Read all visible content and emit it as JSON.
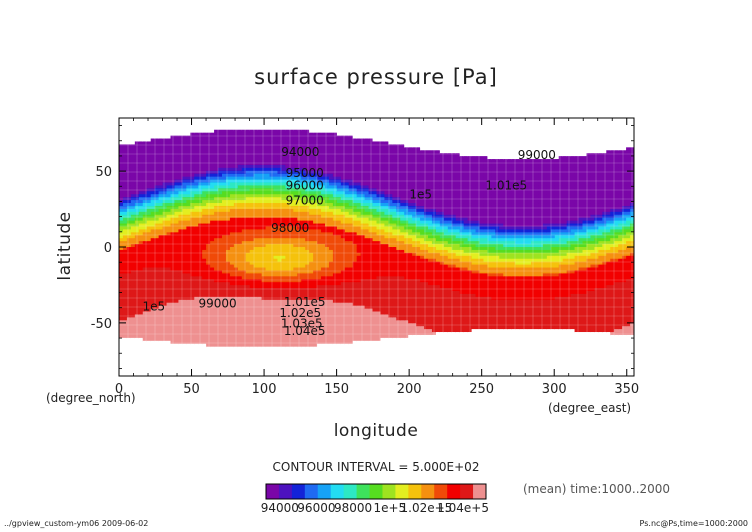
{
  "chart_data": {
    "type": "heatmap",
    "title": "surface pressure [Pa]",
    "xlabel": "longitude",
    "ylabel": "latitude",
    "x_unit": "(degree_east)",
    "y_unit": "(degree_north)",
    "xlim": [
      0,
      355
    ],
    "ylim": [
      -85,
      85
    ],
    "xticks": [
      0,
      50,
      100,
      150,
      200,
      250,
      300,
      350
    ],
    "yticks": [
      -50,
      0,
      50
    ],
    "contour_interval_text": "CONTOUR INTERVAL = 5.000E+02",
    "contour_levels": [
      94000,
      94500,
      95000,
      95500,
      96000,
      96500,
      97000,
      97500,
      98000,
      98500,
      99000,
      99500,
      100000,
      100500,
      101000,
      101500,
      102000,
      102500,
      103000,
      103500,
      104000,
      104500
    ],
    "colorbar": {
      "colors": [
        "#7a06a8",
        "#4d12bf",
        "#1323d8",
        "#1f6af2",
        "#16a2f6",
        "#23dcf2",
        "#2de8c4",
        "#3ee25c",
        "#56dd20",
        "#9ee320",
        "#e3ee20",
        "#f5c20c",
        "#f59010",
        "#f04a08",
        "#f20000",
        "#de1818",
        "#ee9090"
      ],
      "tick_labels": [
        "94000",
        "96000",
        "98000",
        "1e+5",
        "1.02e+5",
        "1.04e+5"
      ],
      "tick_values": [
        94000,
        96000,
        98000,
        100000,
        102000,
        104000
      ],
      "range": [
        93250,
        105250
      ]
    },
    "field_description": "zonal-band pressure field, low in the north (about 94000 Pa) and high in the south (about 104000 Pa)",
    "contour_labels": [
      {
        "text": "94000",
        "lon": 125,
        "lat": 60
      },
      {
        "text": "95000",
        "lon": 128,
        "lat": 46
      },
      {
        "text": "96000",
        "lon": 128,
        "lat": 38
      },
      {
        "text": "97000",
        "lon": 128,
        "lat": 28
      },
      {
        "text": "98000",
        "lon": 118,
        "lat": 10
      },
      {
        "text": "99000",
        "lon": 288,
        "lat": 58
      },
      {
        "text": "1.01e5",
        "lon": 267,
        "lat": 38
      },
      {
        "text": "1e5",
        "lon": 208,
        "lat": 32
      },
      {
        "text": "99000",
        "lon": 68,
        "lat": -40
      },
      {
        "text": "1e5",
        "lon": 24,
        "lat": -42
      },
      {
        "text": "1.01e5",
        "lon": 128,
        "lat": -39
      },
      {
        "text": "1.02e5",
        "lon": 125,
        "lat": -46
      },
      {
        "text": "1.03e5",
        "lon": 126,
        "lat": -53
      },
      {
        "text": "1.04e5",
        "lon": 128,
        "lat": -58
      }
    ],
    "mean_text": "(mean) time:1000..2000"
  },
  "footer": {
    "left": "../gpview_custom-ym06  2009-06-02",
    "right": "Ps.nc@Ps,time=1000:2000"
  }
}
